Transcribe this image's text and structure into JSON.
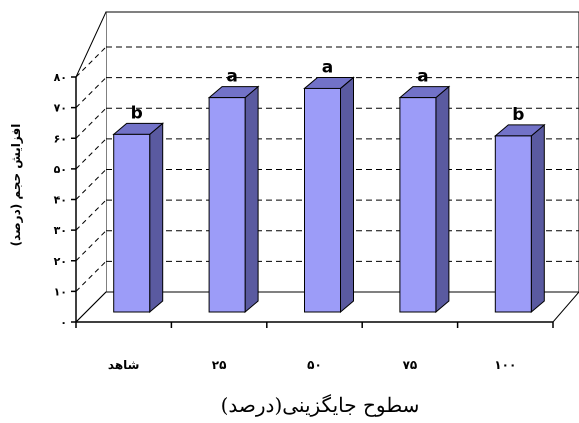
{
  "chart_data": {
    "type": "bar",
    "categories": [
      "شاهد",
      "۲۵",
      "۵۰",
      "۷۵",
      "۱۰۰"
    ],
    "values": [
      58,
      70,
      73,
      70,
      57.5
    ],
    "significance_letters": [
      "b",
      "a",
      "a",
      "a",
      "b"
    ],
    "ylim": [
      0,
      80
    ],
    "yticks": [
      "۰",
      "۱۰",
      "۲۰",
      "۳۰",
      "۴۰",
      "۵۰",
      "۶۰",
      "۷۰",
      "۸۰"
    ],
    "ylabel": "افزایش حجم (درصد)",
    "xlabel": "سطوح جایگزینی(درصد)",
    "grid": true,
    "style": "3d-column",
    "colors": {
      "bar_front": "#9c9cf8",
      "bar_side": "#5a5aa0",
      "bar_top": "#7272c8",
      "bar_edge": "#000000",
      "grid": "#000000"
    }
  }
}
